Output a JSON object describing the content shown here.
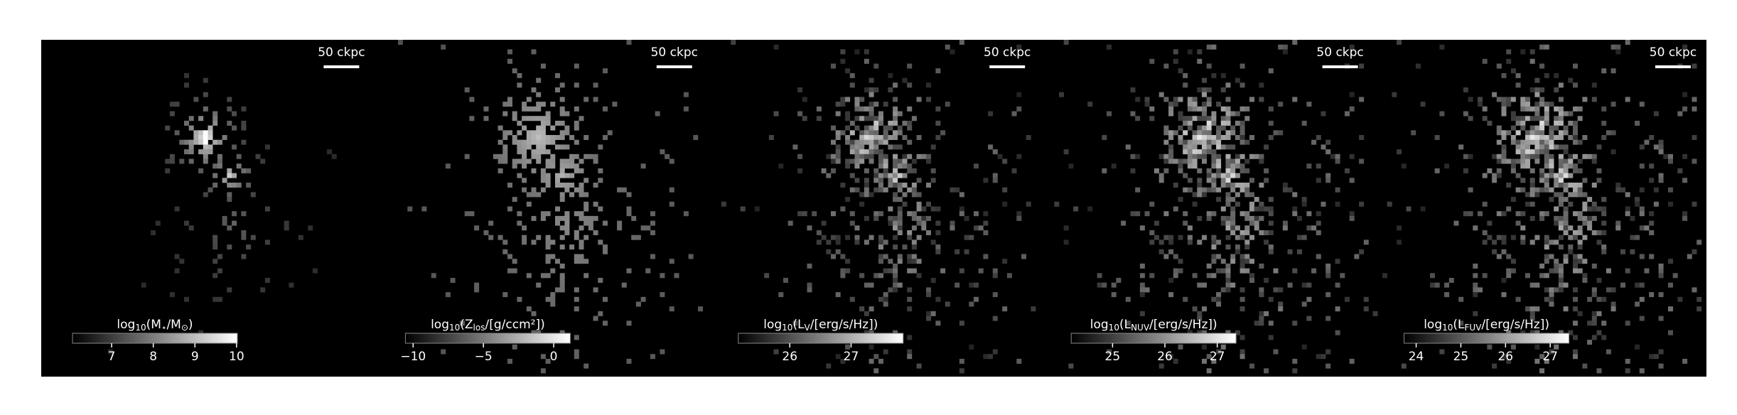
{
  "panels": [
    {
      "scalebar": "50 ckpc",
      "colorbar": {
        "label": [
          {
            "t": "log"
          },
          {
            "t": "10",
            "sub": true
          },
          {
            "t": "(M"
          },
          {
            "t": "⋆",
            "sub": true
          },
          {
            "t": "/M"
          },
          {
            "t": "⊙",
            "sub": true
          },
          {
            "t": ")"
          }
        ],
        "lim": [
          6.06,
          10.02
        ],
        "ticks": [
          7,
          8,
          9,
          10
        ]
      }
    },
    {
      "scalebar": "50 ckpc",
      "colorbar": {
        "label": [
          {
            "t": "log"
          },
          {
            "t": "10",
            "sub": true
          },
          {
            "t": "(Z"
          },
          {
            "t": "los",
            "sub": true
          },
          {
            "t": "/[g/ccm²])"
          }
        ],
        "lim": [
          -10.55,
          1.18
        ],
        "ticks": [
          {
            "value": -10,
            "label": "−10"
          },
          {
            "value": -5,
            "label": "−5"
          },
          0
        ]
      }
    },
    {
      "scalebar": "50 ckpc",
      "colorbar": {
        "label": [
          {
            "t": "log"
          },
          {
            "t": "10",
            "sub": true
          },
          {
            "t": "(L"
          },
          {
            "t": "V",
            "sub": true
          },
          {
            "t": "/[erg/s/Hz])"
          }
        ],
        "lim": [
          25.16,
          27.85
        ],
        "ticks": [
          26,
          27
        ]
      }
    },
    {
      "scalebar": "50 ckpc",
      "colorbar": {
        "label": [
          {
            "t": "log"
          },
          {
            "t": "10",
            "sub": true
          },
          {
            "t": "(L"
          },
          {
            "t": "NUV",
            "sub": true
          },
          {
            "t": "/[erg/s/Hz])"
          }
        ],
        "lim": [
          24.21,
          27.36
        ],
        "ticks": [
          25,
          26,
          27
        ]
      }
    },
    {
      "scalebar": "50 ckpc",
      "colorbar": {
        "label": [
          {
            "t": "log"
          },
          {
            "t": "10",
            "sub": true
          },
          {
            "t": "(L"
          },
          {
            "t": "FUV",
            "sub": true
          },
          {
            "t": "/[erg/s/Hz])"
          }
        ],
        "lim": [
          23.73,
          27.42
        ],
        "ticks": [
          24,
          25,
          26,
          27
        ]
      }
    }
  ]
}
